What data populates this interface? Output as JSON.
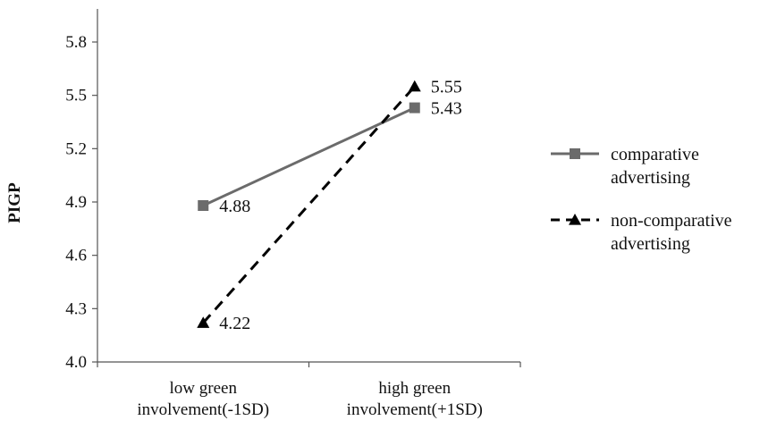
{
  "chart_data": {
    "type": "line",
    "title": "",
    "xlabel": "",
    "ylabel": "PIGP",
    "ylim": [
      4.0,
      5.8
    ],
    "yticks": [
      "4.0",
      "4.3",
      "4.6",
      "4.9",
      "5.2",
      "5.5",
      "5.8"
    ],
    "categories": [
      [
        "low green",
        "involvement(-1SD)"
      ],
      [
        "high green",
        "involvement(+1SD)"
      ]
    ],
    "series": [
      {
        "name": "comparative advertising",
        "name_lines": [
          "comparative",
          "advertising"
        ],
        "values": [
          4.88,
          5.43
        ],
        "labels": [
          "4.88",
          "5.43"
        ],
        "color": "#6b6b6b",
        "marker": "square",
        "line_style": "solid"
      },
      {
        "name": "non-comparative advertising",
        "name_lines": [
          "non-comparative",
          "advertising"
        ],
        "values": [
          4.22,
          5.55
        ],
        "labels": [
          "4.22",
          "5.55"
        ],
        "color": "#000000",
        "marker": "triangle",
        "line_style": "dashed"
      }
    ],
    "grid": false,
    "legend_position": "right"
  }
}
